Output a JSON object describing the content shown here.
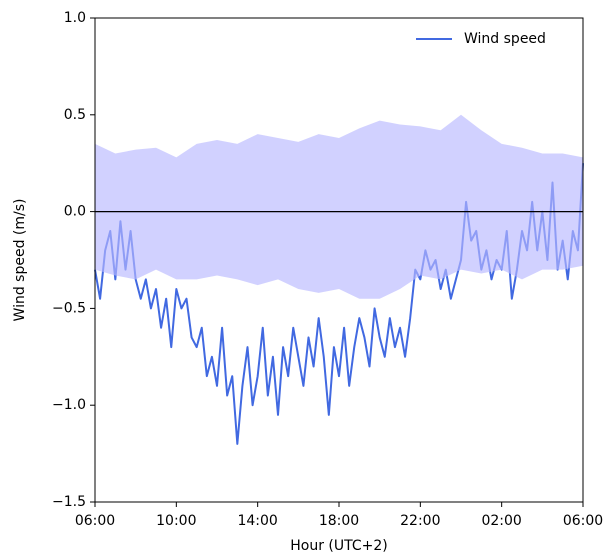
{
  "chart_data": {
    "type": "line",
    "x_label": "Hour (UTC+2)",
    "y_label": "Wind speed (m/s)",
    "x": [
      6,
      6.25,
      6.5,
      6.75,
      7,
      7.25,
      7.5,
      7.75,
      8,
      8.25,
      8.5,
      8.75,
      9,
      9.25,
      9.5,
      9.75,
      10,
      10.25,
      10.5,
      10.75,
      11,
      11.25,
      11.5,
      11.75,
      12,
      12.25,
      12.5,
      12.75,
      13,
      13.25,
      13.5,
      13.75,
      14,
      14.25,
      14.5,
      14.75,
      15,
      15.25,
      15.5,
      15.75,
      16,
      16.25,
      16.5,
      16.75,
      17,
      17.25,
      17.5,
      17.75,
      18,
      18.25,
      18.5,
      18.75,
      19,
      19.25,
      19.5,
      19.75,
      20,
      20.25,
      20.5,
      20.75,
      21,
      21.25,
      21.5,
      21.75,
      22,
      22.25,
      22.5,
      22.75,
      23,
      23.25,
      23.5,
      23.75,
      24,
      24.25,
      24.5,
      24.75,
      25,
      25.25,
      25.5,
      25.75,
      26,
      26.25,
      26.5,
      26.75,
      27,
      27.25,
      27.5,
      27.75,
      28,
      28.25,
      28.5,
      28.75,
      29,
      29.25,
      29.5,
      29.75,
      30
    ],
    "series": [
      {
        "name": "Wind speed",
        "color": "#4169e1",
        "values": [
          -0.3,
          -0.45,
          -0.2,
          -0.1,
          -0.35,
          -0.05,
          -0.3,
          -0.1,
          -0.35,
          -0.45,
          -0.35,
          -0.5,
          -0.4,
          -0.6,
          -0.45,
          -0.7,
          -0.4,
          -0.5,
          -0.45,
          -0.65,
          -0.7,
          -0.6,
          -0.85,
          -0.75,
          -0.9,
          -0.6,
          -0.95,
          -0.85,
          -1.2,
          -0.9,
          -0.7,
          -1.0,
          -0.85,
          -0.6,
          -0.95,
          -0.75,
          -1.05,
          -0.7,
          -0.85,
          -0.6,
          -0.75,
          -0.9,
          -0.65,
          -0.8,
          -0.55,
          -0.75,
          -1.05,
          -0.7,
          -0.85,
          -0.6,
          -0.9,
          -0.7,
          -0.55,
          -0.65,
          -0.8,
          -0.5,
          -0.65,
          -0.75,
          -0.55,
          -0.7,
          -0.6,
          -0.75,
          -0.55,
          -0.3,
          -0.35,
          -0.2,
          -0.3,
          -0.25,
          -0.4,
          -0.3,
          -0.45,
          -0.35,
          -0.25,
          0.05,
          -0.15,
          -0.1,
          -0.3,
          -0.2,
          -0.35,
          -0.25,
          -0.3,
          -0.1,
          -0.45,
          -0.3,
          -0.1,
          -0.2,
          0.05,
          -0.2,
          0.0,
          -0.25,
          0.15,
          -0.3,
          -0.15,
          -0.35,
          -0.1,
          -0.2,
          0.25
        ]
      }
    ],
    "band": {
      "color": "#b8b8ff",
      "opacity": 0.65,
      "x": [
        6,
        7,
        8,
        9,
        10,
        11,
        12,
        13,
        14,
        15,
        16,
        17,
        18,
        19,
        20,
        21,
        22,
        23,
        24,
        25,
        26,
        27,
        28,
        29,
        30
      ],
      "upper": [
        0.35,
        0.3,
        0.32,
        0.33,
        0.28,
        0.35,
        0.37,
        0.35,
        0.4,
        0.38,
        0.36,
        0.4,
        0.38,
        0.43,
        0.47,
        0.45,
        0.44,
        0.42,
        0.5,
        0.42,
        0.35,
        0.33,
        0.3,
        0.3,
        0.28
      ],
      "lower": [
        -0.3,
        -0.33,
        -0.35,
        -0.3,
        -0.35,
        -0.35,
        -0.33,
        -0.35,
        -0.38,
        -0.35,
        -0.4,
        -0.42,
        -0.4,
        -0.45,
        -0.45,
        -0.4,
        -0.33,
        -0.35,
        -0.3,
        -0.32,
        -0.3,
        -0.35,
        -0.3,
        -0.3,
        -0.28
      ]
    },
    "hline": 0,
    "xlim": [
      6,
      30
    ],
    "xticks": [
      {
        "value": 6,
        "label": "06:00"
      },
      {
        "value": 10,
        "label": "10:00"
      },
      {
        "value": 14,
        "label": "14:00"
      },
      {
        "value": 18,
        "label": "18:00"
      },
      {
        "value": 22,
        "label": "22:00"
      },
      {
        "value": 26,
        "label": "02:00"
      },
      {
        "value": 30,
        "label": "06:00"
      }
    ],
    "ylim": [
      -1.5,
      1.0
    ],
    "yticks": [
      {
        "value": -1.5,
        "label": "−1.5"
      },
      {
        "value": -1.0,
        "label": "−1.0"
      },
      {
        "value": -0.5,
        "label": "−0.5"
      },
      {
        "value": 0,
        "label": "0.0"
      },
      {
        "value": 0.5,
        "label": "0.5"
      },
      {
        "value": 1.0,
        "label": "1.0"
      }
    ],
    "legend": "upper right",
    "grid": false
  }
}
